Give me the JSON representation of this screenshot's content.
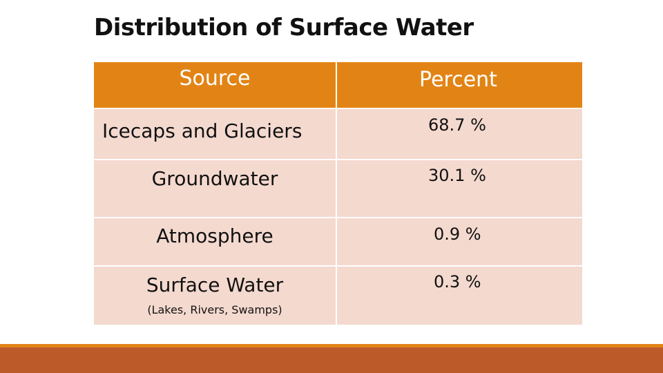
{
  "slide": {
    "title": "Distribution of Surface Water"
  },
  "table": {
    "headers": [
      "Source",
      "Percent"
    ],
    "rows": [
      {
        "source": "Icecaps and Glaciers",
        "percent": "68.7 %"
      },
      {
        "source": "Groundwater",
        "percent": "30.1 %"
      },
      {
        "source": "Atmosphere",
        "percent": "0.9 %"
      },
      {
        "source": "Surface Water",
        "subtext": "(Lakes, Rivers, Swamps)",
        "percent": "0.3 %"
      }
    ]
  },
  "colors": {
    "header_bg": "#e28415",
    "row_bg": "#f4d9cf",
    "footer_thin": "#e28415",
    "footer_thick": "#bc5a2a"
  }
}
